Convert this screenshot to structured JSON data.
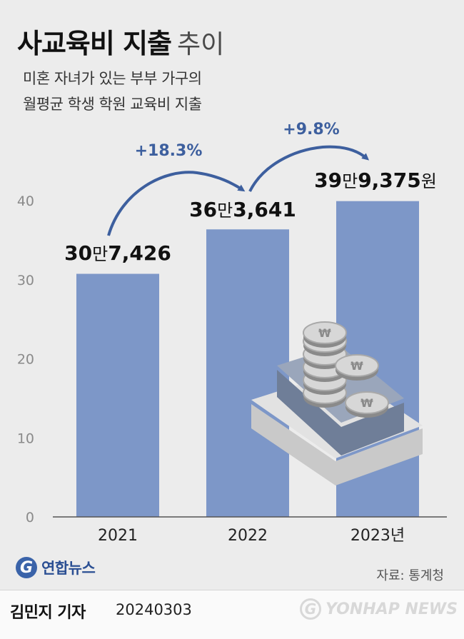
{
  "title_bold": "사교육비 지출",
  "title_light": "추이",
  "subtitle_line1": "미혼 자녀가 있는 부부 가구의",
  "subtitle_line2": "월평균 학생 학원 교육비 지출",
  "source": "자료: 통계청",
  "reporter": "김민지 기자",
  "date": "20240303",
  "logo_text": "연합뉴스",
  "logo_mark": "G",
  "watermark_text": "YONHAP NEWS",
  "colors": {
    "bar": "#7d97c8",
    "arrow": "#3d5f9e",
    "growth_text": "#3d5f9e"
  },
  "chart_data": {
    "type": "bar",
    "categories": [
      "2021",
      "2022",
      "2023"
    ],
    "category_suffix_last": "년",
    "values": [
      30.7426,
      36.3641,
      39.9375
    ],
    "value_labels": [
      {
        "main": "30",
        "unit": "만",
        "rest": "7,426",
        "suffix": ""
      },
      {
        "main": "36",
        "unit": "만",
        "rest": "3,641",
        "suffix": ""
      },
      {
        "main": "39",
        "unit": "만",
        "rest": "9,375",
        "suffix": "원"
      }
    ],
    "growth_labels": [
      "+18.3%",
      "+9.8%"
    ],
    "ylim": [
      0,
      40
    ],
    "yticks": [
      0,
      10,
      20,
      30,
      40
    ],
    "grid": false
  }
}
